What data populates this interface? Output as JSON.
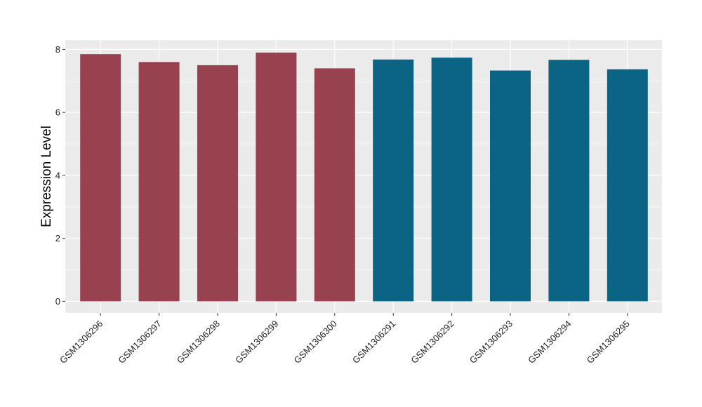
{
  "chart_data": {
    "type": "bar",
    "title": "",
    "xlabel": "",
    "ylabel": "Expression Level",
    "ylim": [
      0,
      8.3
    ],
    "yticks": [
      0,
      2,
      4,
      6,
      8
    ],
    "grid": true,
    "legend": "none",
    "categories": [
      "GSM1306296",
      "GSM1306297",
      "GSM1306298",
      "GSM1306299",
      "GSM1306300",
      "GSM1306291",
      "GSM1306292",
      "GSM1306293",
      "GSM1306294",
      "GSM1306295"
    ],
    "values": [
      7.85,
      7.6,
      7.5,
      7.9,
      7.4,
      7.68,
      7.74,
      7.33,
      7.67,
      7.37
    ],
    "bar_colors": [
      "#99424f",
      "#99424f",
      "#99424f",
      "#99424f",
      "#99424f",
      "#0b6484",
      "#0b6484",
      "#0b6484",
      "#0b6484",
      "#0b6484"
    ],
    "panel_color": "#ebebeb",
    "grid_color": "#ffffff"
  }
}
